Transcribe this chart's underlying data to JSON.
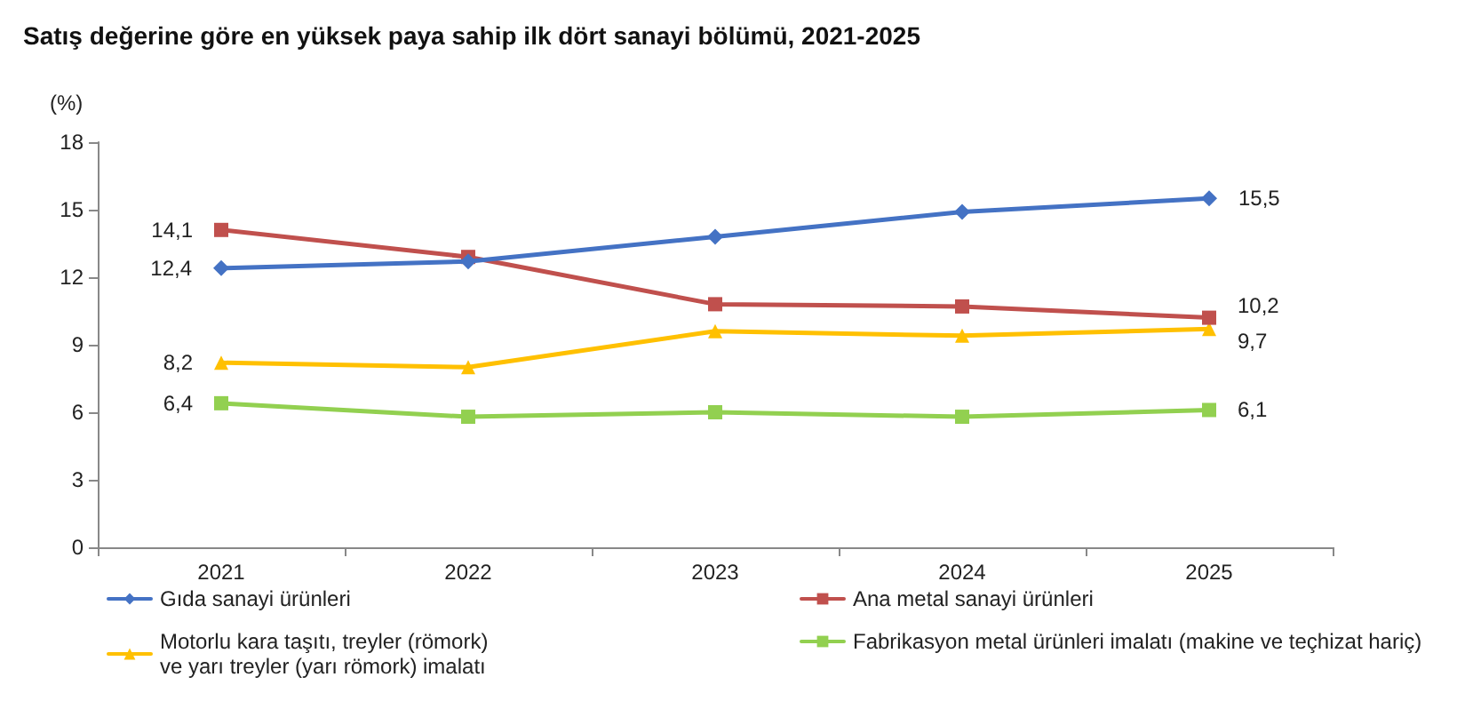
{
  "chart_data": {
    "type": "line",
    "title": "Satış değerine göre en yüksek paya sahip ilk dört sanayi bölümü, 2021-2025",
    "ylabel": "(%)",
    "categories": [
      "2021",
      "2022",
      "2023",
      "2024",
      "2025"
    ],
    "ylim": [
      0,
      18
    ],
    "yticks": [
      0,
      3,
      6,
      9,
      12,
      15,
      18
    ],
    "grid": false,
    "legend": "bottom",
    "series": [
      {
        "name": "Gıda sanayi ürünleri",
        "color": "#4472c4",
        "marker": "diamond",
        "values": [
          12.4,
          12.7,
          13.8,
          14.9,
          15.5
        ],
        "value_labels": [
          "12,4",
          null,
          null,
          null,
          "15,5"
        ]
      },
      {
        "name": "Ana metal sanayi ürünleri",
        "color": "#c0504d",
        "marker": "square",
        "values": [
          14.1,
          12.9,
          10.8,
          10.7,
          10.2
        ],
        "value_labels": [
          "14,1",
          null,
          null,
          null,
          "10,2"
        ]
      },
      {
        "name": "Motorlu kara taşıtı, treyler (römork)\nve yarı treyler (yarı römork) imalatı",
        "color": "#ffc000",
        "marker": "triangle",
        "values": [
          8.2,
          8.0,
          9.6,
          9.4,
          9.7
        ],
        "value_labels": [
          "8,2",
          null,
          null,
          null,
          "9,7"
        ]
      },
      {
        "name": "Fabrikasyon metal ürünleri imalatı (makine ve teçhizat hariç)",
        "color": "#92d050",
        "marker": "square",
        "values": [
          6.4,
          5.8,
          6.0,
          5.8,
          6.1
        ],
        "value_labels": [
          "6,4",
          null,
          null,
          null,
          "6,1"
        ]
      }
    ]
  }
}
